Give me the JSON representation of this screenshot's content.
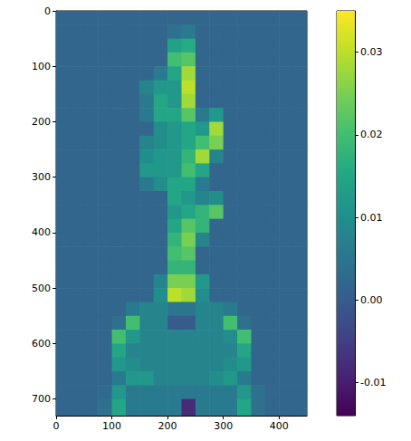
{
  "chart_data": {
    "type": "heatmap",
    "x_bins": [
      0,
      25,
      50,
      75,
      100,
      125,
      150,
      175,
      200,
      225,
      250,
      275,
      300,
      325,
      350,
      375,
      400,
      425,
      450
    ],
    "y_bins": [
      0,
      25,
      50,
      75,
      100,
      125,
      150,
      175,
      200,
      225,
      250,
      275,
      300,
      325,
      350,
      375,
      400,
      425,
      450,
      475,
      500,
      525,
      550,
      575,
      600,
      625,
      650,
      675,
      700,
      730
    ],
    "cells": [
      [
        0.002,
        0.002,
        0.002,
        0.002,
        0.002,
        0.002,
        0.002,
        0.002,
        0.002,
        0.002,
        0.002,
        0.002,
        0.002,
        0.002,
        0.002,
        0.002,
        0.002,
        0.002
      ],
      [
        0.002,
        0.002,
        0.002,
        0.002,
        0.002,
        0.002,
        0.002,
        0.002,
        0.004,
        0.006,
        0.002,
        0.002,
        0.002,
        0.002,
        0.002,
        0.002,
        0.002,
        0.002
      ],
      [
        0.002,
        0.002,
        0.002,
        0.002,
        0.002,
        0.002,
        0.002,
        0.002,
        0.014,
        0.016,
        0.002,
        0.002,
        0.002,
        0.002,
        0.002,
        0.002,
        0.002,
        0.002
      ],
      [
        0.002,
        0.002,
        0.002,
        0.002,
        0.002,
        0.002,
        0.002,
        0.002,
        0.02,
        0.022,
        0.002,
        0.002,
        0.002,
        0.002,
        0.002,
        0.002,
        0.002,
        0.002
      ],
      [
        0.002,
        0.002,
        0.002,
        0.002,
        0.002,
        0.002,
        0.002,
        0.006,
        0.015,
        0.028,
        0.002,
        0.002,
        0.002,
        0.002,
        0.002,
        0.002,
        0.002,
        0.002
      ],
      [
        0.002,
        0.002,
        0.002,
        0.002,
        0.002,
        0.002,
        0.008,
        0.012,
        0.012,
        0.03,
        0.002,
        0.002,
        0.002,
        0.002,
        0.002,
        0.002,
        0.002,
        0.002
      ],
      [
        0.002,
        0.002,
        0.002,
        0.002,
        0.002,
        0.002,
        0.006,
        0.015,
        0.012,
        0.028,
        0.002,
        0.002,
        0.002,
        0.002,
        0.002,
        0.002,
        0.002,
        0.002
      ],
      [
        0.002,
        0.002,
        0.002,
        0.002,
        0.002,
        0.002,
        0.006,
        0.015,
        0.015,
        0.022,
        0.006,
        0.012,
        0.002,
        0.002,
        0.002,
        0.002,
        0.002,
        0.002
      ],
      [
        0.002,
        0.002,
        0.002,
        0.002,
        0.002,
        0.002,
        0.002,
        0.01,
        0.012,
        0.015,
        0.012,
        0.028,
        0.002,
        0.002,
        0.002,
        0.002,
        0.002,
        0.002
      ],
      [
        0.002,
        0.002,
        0.002,
        0.002,
        0.002,
        0.002,
        0.008,
        0.01,
        0.012,
        0.015,
        0.02,
        0.025,
        0.002,
        0.002,
        0.002,
        0.002,
        0.002,
        0.002
      ],
      [
        0.002,
        0.002,
        0.002,
        0.002,
        0.002,
        0.002,
        0.01,
        0.012,
        0.012,
        0.018,
        0.028,
        0.008,
        0.002,
        0.002,
        0.002,
        0.002,
        0.002,
        0.002
      ],
      [
        0.002,
        0.002,
        0.002,
        0.002,
        0.002,
        0.002,
        0.012,
        0.012,
        0.012,
        0.02,
        0.015,
        0.002,
        0.002,
        0.002,
        0.002,
        0.002,
        0.002,
        0.002
      ],
      [
        0.002,
        0.002,
        0.002,
        0.002,
        0.002,
        0.002,
        0.006,
        0.01,
        0.015,
        0.015,
        0.006,
        0.002,
        0.002,
        0.002,
        0.002,
        0.002,
        0.002,
        0.002
      ],
      [
        0.002,
        0.002,
        0.002,
        0.002,
        0.002,
        0.002,
        0.002,
        0.002,
        0.015,
        0.012,
        0.008,
        0.01,
        0.002,
        0.002,
        0.002,
        0.002,
        0.002,
        0.002
      ],
      [
        0.002,
        0.002,
        0.002,
        0.002,
        0.002,
        0.002,
        0.002,
        0.002,
        0.012,
        0.015,
        0.018,
        0.022,
        0.002,
        0.002,
        0.002,
        0.002,
        0.002,
        0.002
      ],
      [
        0.002,
        0.002,
        0.002,
        0.002,
        0.002,
        0.002,
        0.002,
        0.002,
        0.015,
        0.022,
        0.018,
        0.002,
        0.002,
        0.002,
        0.002,
        0.002,
        0.002,
        0.002
      ],
      [
        0.002,
        0.002,
        0.002,
        0.002,
        0.002,
        0.002,
        0.002,
        0.002,
        0.018,
        0.025,
        0.008,
        0.002,
        0.002,
        0.002,
        0.002,
        0.002,
        0.002,
        0.002
      ],
      [
        0.002,
        0.002,
        0.002,
        0.002,
        0.002,
        0.002,
        0.002,
        0.002,
        0.02,
        0.022,
        0.002,
        0.002,
        0.002,
        0.002,
        0.002,
        0.002,
        0.002,
        0.002
      ],
      [
        0.002,
        0.002,
        0.002,
        0.002,
        0.002,
        0.002,
        0.002,
        0.002,
        0.018,
        0.018,
        0.002,
        0.002,
        0.002,
        0.002,
        0.002,
        0.002,
        0.002,
        0.002
      ],
      [
        0.002,
        0.002,
        0.002,
        0.002,
        0.002,
        0.002,
        0.002,
        0.008,
        0.025,
        0.025,
        0.012,
        0.002,
        0.002,
        0.002,
        0.002,
        0.002,
        0.002,
        0.002
      ],
      [
        0.002,
        0.002,
        0.002,
        0.002,
        0.002,
        0.002,
        0.002,
        0.01,
        0.03,
        0.028,
        0.01,
        0.002,
        0.002,
        0.002,
        0.002,
        0.002,
        0.002,
        0.002
      ],
      [
        0.002,
        0.002,
        0.002,
        0.002,
        0.002,
        0.006,
        0.008,
        0.008,
        0.005,
        0.005,
        0.008,
        0.008,
        0.006,
        0.002,
        0.002,
        0.002,
        0.002,
        0.002
      ],
      [
        0.002,
        0.002,
        0.002,
        0.002,
        0.004,
        0.02,
        0.008,
        0.008,
        0.0,
        0.0,
        0.008,
        0.008,
        0.02,
        0.004,
        0.002,
        0.002,
        0.002,
        0.002
      ],
      [
        0.002,
        0.002,
        0.002,
        0.002,
        0.02,
        0.012,
        0.008,
        0.008,
        0.008,
        0.008,
        0.008,
        0.008,
        0.01,
        0.02,
        0.002,
        0.002,
        0.002,
        0.002
      ],
      [
        0.002,
        0.002,
        0.002,
        0.002,
        0.015,
        0.008,
        0.008,
        0.008,
        0.008,
        0.008,
        0.008,
        0.008,
        0.008,
        0.015,
        0.002,
        0.002,
        0.002,
        0.002
      ],
      [
        0.002,
        0.002,
        0.002,
        0.002,
        0.012,
        0.01,
        0.008,
        0.008,
        0.008,
        0.008,
        0.008,
        0.008,
        0.01,
        0.012,
        0.002,
        0.002,
        0.002,
        0.002
      ],
      [
        0.002,
        0.002,
        0.002,
        0.002,
        0.006,
        0.012,
        0.012,
        0.008,
        0.008,
        0.008,
        0.008,
        0.01,
        0.012,
        0.006,
        0.002,
        0.002,
        0.002,
        0.002
      ],
      [
        0.002,
        0.002,
        0.002,
        0.003,
        0.012,
        0.006,
        0.006,
        0.006,
        0.006,
        0.006,
        0.006,
        0.006,
        0.006,
        0.012,
        0.004,
        0.002,
        0.002,
        0.002
      ],
      [
        0.002,
        0.002,
        0.002,
        0.004,
        0.015,
        0.006,
        0.006,
        0.006,
        0.006,
        -0.008,
        0.006,
        0.006,
        0.006,
        0.015,
        0.004,
        0.002,
        0.002,
        0.002
      ]
    ],
    "xlim": [
      0,
      450
    ],
    "ylim": [
      0,
      730
    ],
    "xticks": [
      0,
      100,
      200,
      300,
      400
    ],
    "yticks": [
      0,
      100,
      200,
      300,
      400,
      500,
      600,
      700
    ],
    "colorbar": {
      "range": [
        -0.014,
        0.035
      ],
      "ticks": [
        -0.01,
        {
          "value": 0,
          "label": "0.00"
        },
        0.01,
        0.02,
        0.03
      ]
    }
  }
}
